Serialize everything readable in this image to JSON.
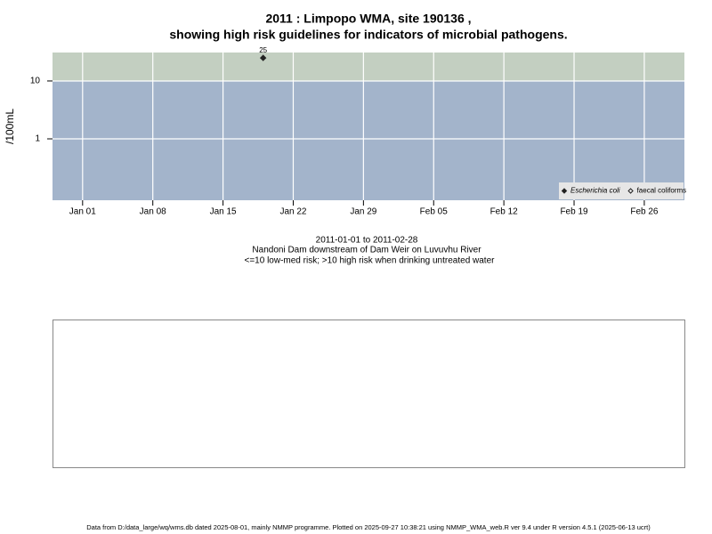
{
  "chart_data": {
    "type": "scatter",
    "title": "2011 : Limpopo WMA, site 190136 ,",
    "subtitle": "showing high risk guidelines for indicators of microbial pathogens.",
    "y_label": "/100mL",
    "date_range": "2011-01-01 to 2011-02-28",
    "site_description": "Nandoni Dam downstream of Dam Weir on Luvuvhu River",
    "risk_note": "<=10 low-med risk; >10 high risk when drinking untreated water",
    "log_y": true,
    "grid": true,
    "legend": "lower right",
    "threshold": 10,
    "band_colors": [
      "#a3b4cb",
      "#c3cfc1"
    ],
    "xlim": [
      "2010-12-29",
      "2011-03-02"
    ],
    "ylim": [
      0.087,
      31
    ],
    "yticks": [
      1,
      10
    ],
    "xticks": [
      {
        "value": "2011-01-01",
        "label": "Jan 01"
      },
      {
        "value": "2011-01-08",
        "label": "Jan 08"
      },
      {
        "value": "2011-01-15",
        "label": "Jan 15"
      },
      {
        "value": "2011-01-22",
        "label": "Jan 22"
      },
      {
        "value": "2011-01-29",
        "label": "Jan 29"
      },
      {
        "value": "2011-02-05",
        "label": "Feb 05"
      },
      {
        "value": "2011-02-12",
        "label": "Feb 12"
      },
      {
        "value": "2011-02-19",
        "label": "Feb 19"
      },
      {
        "value": "2011-02-26",
        "label": "Feb 26"
      }
    ],
    "series": [
      {
        "name": "Escherichia coli",
        "color": "#222222",
        "x": [
          "2011-01-19"
        ],
        "values": [
          25
        ],
        "filled": true
      },
      {
        "name": "faecal coliforms",
        "color": "#222222",
        "x": [],
        "values": [],
        "filled": false
      }
    ]
  },
  "footer": "Data from D:/data_large/wq/wms.db dated 2025-08-01, mainly NMMP programme. Plotted on 2025-09-27 10:38:21 using NMMP_WMA_web.R ver 9.4 under R version 4.5.1 (2025-06-13 ucrt)"
}
